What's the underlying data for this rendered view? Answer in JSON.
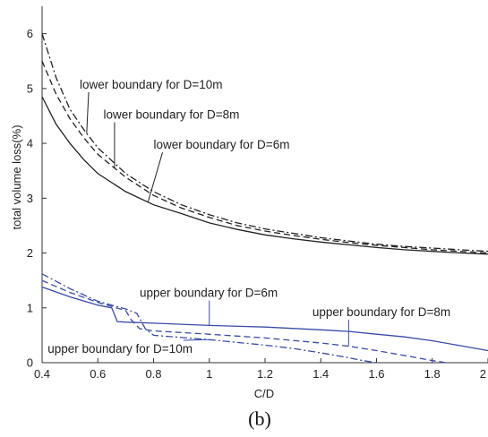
{
  "chart_data": {
    "type": "line",
    "xlabel": "C/D",
    "ylabel": "total volume loss(%)",
    "subcaption": "(b)",
    "xlim": [
      0.4,
      2.0
    ],
    "ylim": [
      0,
      6.5
    ],
    "xticks": [
      "0.4",
      "0.6",
      "0.8",
      "1",
      "1.2",
      "1.4",
      "1.6",
      "1.8",
      "2"
    ],
    "yticks": [
      "0",
      "1",
      "2",
      "3",
      "4",
      "5",
      "6"
    ],
    "grid": false,
    "colors": {
      "lower": "#222222",
      "upper": "#3a4aa8"
    },
    "series": [
      {
        "name": "lower boundary for D=10m",
        "group": "lower",
        "dash": "dashdot",
        "x": [
          0.4,
          0.45,
          0.5,
          0.55,
          0.6,
          0.7,
          0.8,
          0.9,
          1.0,
          1.1,
          1.2,
          1.3,
          1.4,
          1.5,
          1.6,
          1.7,
          1.8,
          1.9,
          2.0
        ],
        "y": [
          6.0,
          5.2,
          4.62,
          4.25,
          3.92,
          3.45,
          3.12,
          2.88,
          2.7,
          2.55,
          2.44,
          2.36,
          2.28,
          2.22,
          2.16,
          2.12,
          2.09,
          2.06,
          2.03
        ]
      },
      {
        "name": "lower  boundary for D=8m",
        "group": "lower",
        "dash": "dash",
        "x": [
          0.4,
          0.45,
          0.5,
          0.55,
          0.6,
          0.7,
          0.8,
          0.9,
          1.0,
          1.1,
          1.2,
          1.3,
          1.4,
          1.5,
          1.6,
          1.7,
          1.8,
          1.9,
          2.0
        ],
        "y": [
          5.5,
          4.9,
          4.45,
          4.1,
          3.8,
          3.38,
          3.05,
          2.82,
          2.65,
          2.5,
          2.4,
          2.32,
          2.25,
          2.19,
          2.14,
          2.1,
          2.06,
          2.03,
          2.0
        ]
      },
      {
        "name": "lower  boundary for D=6m",
        "group": "lower",
        "dash": "solid",
        "x": [
          0.4,
          0.45,
          0.5,
          0.55,
          0.6,
          0.7,
          0.8,
          0.9,
          1.0,
          1.1,
          1.2,
          1.3,
          1.4,
          1.5,
          1.6,
          1.7,
          1.8,
          1.9,
          2.0
        ],
        "y": [
          4.85,
          4.35,
          4.0,
          3.7,
          3.45,
          3.12,
          2.88,
          2.72,
          2.55,
          2.43,
          2.33,
          2.26,
          2.2,
          2.15,
          2.1,
          2.06,
          2.03,
          2.0,
          1.98
        ]
      },
      {
        "name": "upper boundary for D=6m",
        "group": "upper",
        "dash": "solid",
        "x": [
          0.4,
          0.5,
          0.6,
          0.65,
          0.67,
          0.7,
          0.8,
          1.0,
          1.2,
          1.4,
          1.5,
          1.6,
          1.7,
          1.8,
          1.9,
          2.0
        ],
        "y": [
          1.38,
          1.2,
          1.05,
          1.0,
          0.75,
          0.74,
          0.72,
          0.68,
          0.65,
          0.6,
          0.57,
          0.52,
          0.47,
          0.4,
          0.31,
          0.22
        ]
      },
      {
        "name": "upper boundary for D=8m",
        "group": "upper",
        "dash": "dash",
        "x": [
          0.4,
          0.5,
          0.6,
          0.7,
          0.72,
          0.75,
          0.8,
          1.0,
          1.2,
          1.4,
          1.5,
          1.6,
          1.7,
          1.8,
          1.85
        ],
        "y": [
          1.5,
          1.28,
          1.1,
          0.95,
          0.78,
          0.62,
          0.58,
          0.52,
          0.45,
          0.36,
          0.3,
          0.22,
          0.13,
          0.04,
          0.0
        ]
      },
      {
        "name": "upper boundary for D=10m",
        "group": "upper",
        "dash": "dashdot",
        "x": [
          0.4,
          0.5,
          0.6,
          0.7,
          0.74,
          0.77,
          0.8,
          1.0,
          1.2,
          1.3,
          1.4,
          1.5,
          1.55,
          1.6
        ],
        "y": [
          1.62,
          1.35,
          1.12,
          0.98,
          0.9,
          0.62,
          0.5,
          0.42,
          0.32,
          0.26,
          0.18,
          0.09,
          0.04,
          0.0
        ]
      }
    ],
    "annotations": [
      {
        "text": "lower boundary for D=10m",
        "series": 0,
        "at_x": 0.56,
        "label_x": 0.535,
        "label_y": 5.0
      },
      {
        "text": "lower  boundary for D=8m",
        "series": 1,
        "at_x": 0.66,
        "label_x": 0.62,
        "label_y": 4.45
      },
      {
        "text": "lower  boundary for D=6m",
        "series": 2,
        "at_x": 0.78,
        "label_x": 0.8,
        "label_y": 3.9
      },
      {
        "text": "upper boundary for D=6m",
        "series": 3,
        "at_x": 1.0,
        "label_x": 0.75,
        "label_y": 1.2
      },
      {
        "text": "upper boundary for D=8m",
        "series": 4,
        "at_x": 1.5,
        "label_x": 1.37,
        "label_y": 0.85
      },
      {
        "text": "upper boundary for D=10m",
        "series": 5,
        "at_x": 1.0,
        "label_x": 0.42,
        "label_y": 0.18
      }
    ]
  }
}
